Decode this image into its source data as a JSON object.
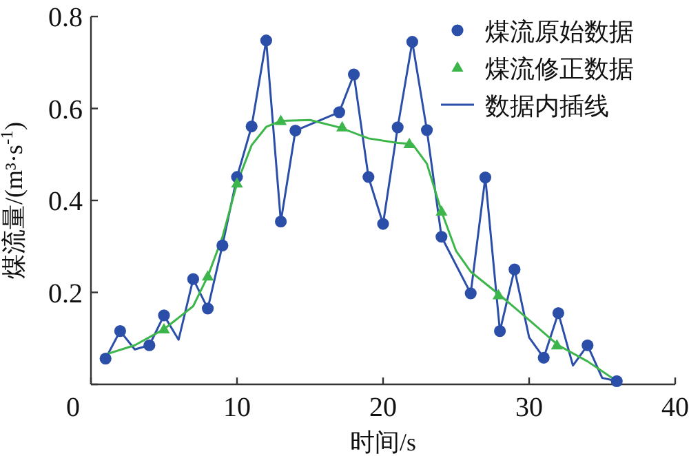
{
  "chart_data": {
    "type": "line",
    "xlabel": "时间/s",
    "ylabel": "煤流量/(m³·s$^{-1}$)",
    "xlim": [
      0,
      40
    ],
    "ylim": [
      0,
      0.8
    ],
    "xticks": [
      0,
      10,
      20,
      30,
      40
    ],
    "yticks": [
      {
        "value": 0,
        "label": null
      },
      0.2,
      0.4,
      0.6,
      0.8
    ],
    "legend": "top right",
    "grid": false,
    "series": [
      {
        "name": "煤流原始数据",
        "type": "scatter",
        "marker": "circle",
        "color": "#2b4ea8",
        "x": [
          1,
          2,
          4,
          5,
          7,
          8,
          9,
          10,
          11,
          12,
          13,
          14,
          17,
          18,
          19,
          20,
          21,
          22,
          23,
          24,
          26,
          27,
          28,
          29,
          31,
          32,
          34,
          36
        ],
        "values": [
          0.056,
          0.116,
          0.085,
          0.15,
          0.229,
          0.165,
          0.302,
          0.451,
          0.561,
          0.748,
          0.354,
          0.552,
          0.592,
          0.674,
          0.451,
          0.349,
          0.559,
          0.745,
          0.553,
          0.321,
          0.198,
          0.45,
          0.116,
          0.25,
          0.058,
          0.155,
          0.085,
          0.007
        ]
      },
      {
        "name": "煤流修正数据",
        "type": "scatter",
        "marker": "triangle",
        "color": "#3cb54a",
        "x": [
          5,
          8,
          10,
          13,
          17.2,
          21.8,
          24,
          27.9,
          31.9
        ],
        "values": [
          0.12,
          0.235,
          0.437,
          0.573,
          0.559,
          0.523,
          0.376,
          0.194,
          0.085
        ]
      },
      {
        "name": "数据内插线",
        "marker": "none",
        "color": "#2b4ea8",
        "x": [
          1,
          2,
          3,
          4,
          5,
          6,
          7,
          8,
          9,
          10,
          11,
          12,
          13,
          14,
          17,
          18,
          19,
          20,
          21,
          22,
          23,
          24,
          26,
          27,
          28,
          29,
          30,
          31,
          32,
          33,
          34,
          35,
          36
        ],
        "values": [
          0.056,
          0.116,
          0.076,
          0.085,
          0.15,
          0.097,
          0.229,
          0.165,
          0.302,
          0.451,
          0.561,
          0.748,
          0.354,
          0.552,
          0.592,
          0.674,
          0.451,
          0.349,
          0.559,
          0.745,
          0.553,
          0.321,
          0.198,
          0.45,
          0.116,
          0.25,
          0.102,
          0.058,
          0.155,
          0.041,
          0.085,
          0.014,
          0.007
        ]
      },
      {
        "marker": "none",
        "color": "#3cb54a",
        "x": [
          1,
          3,
          5,
          7,
          8,
          9,
          10,
          11,
          12,
          13,
          15,
          17,
          19,
          21,
          22,
          23,
          24,
          25,
          26,
          28,
          30,
          32,
          34,
          36
        ],
        "values": [
          0.065,
          0.085,
          0.12,
          0.17,
          0.235,
          0.32,
          0.437,
          0.52,
          0.56,
          0.573,
          0.575,
          0.559,
          0.535,
          0.525,
          0.523,
          0.48,
          0.376,
          0.29,
          0.245,
          0.194,
          0.14,
          0.085,
          0.05,
          0.007
        ]
      }
    ]
  }
}
